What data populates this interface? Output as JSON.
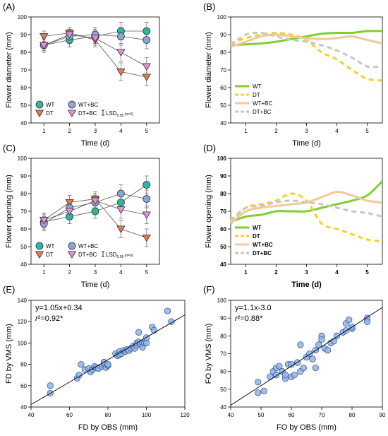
{
  "chart_data": [
    {
      "id": "A",
      "panel_label": "(A)",
      "type": "line",
      "xlabel": "Time (d)",
      "ylabel": "Flower diameter (mm)",
      "xlim": [
        0.5,
        5.5
      ],
      "ylim": [
        40,
        100
      ],
      "xticks": [
        1,
        2,
        3,
        4,
        5
      ],
      "yticks": [
        40,
        50,
        60,
        70,
        80,
        90,
        100
      ],
      "x": [
        1,
        2,
        3,
        4,
        5
      ],
      "series": [
        {
          "name": "WT",
          "color": "#2bb7a0",
          "marker": "circle",
          "values": [
            84,
            87,
            89,
            92,
            92
          ],
          "errors": [
            4,
            4,
            4,
            5,
            5
          ]
        },
        {
          "name": "DT",
          "color": "#e07b52",
          "marker": "triangle-down",
          "values": [
            89,
            91,
            87,
            69,
            66
          ],
          "errors": [
            3,
            3,
            4,
            5,
            5
          ]
        },
        {
          "name": "WT+BC",
          "color": "#8fa4d6",
          "marker": "circle",
          "values": [
            84,
            89,
            90,
            89,
            87
          ],
          "errors": [
            4,
            4,
            4,
            5,
            5
          ]
        },
        {
          "name": "DT+BC",
          "color": "#e48fd6",
          "marker": "triangle-down",
          "values": [
            84,
            90,
            88,
            80,
            72
          ],
          "errors": [
            3,
            3,
            4,
            5,
            5
          ]
        }
      ],
      "lsd": {
        "label": "LSD",
        "sub": "0.05",
        "n": "(n=3)"
      },
      "legend_position": "bottom-left"
    },
    {
      "id": "B",
      "panel_label": "(B)",
      "type": "line",
      "xlabel": "Time (d)",
      "ylabel": "Flower diameter (mm)",
      "xlim": [
        0.5,
        5.5
      ],
      "ylim": [
        40,
        100
      ],
      "xticks": [
        1,
        2,
        3,
        4,
        5
      ],
      "yticks": [
        40,
        50,
        60,
        70,
        80,
        90,
        100
      ],
      "series": [
        {
          "name": "WT",
          "color": "#7ed02f",
          "dash": "solid",
          "x": [
            0.5,
            1,
            1.5,
            2,
            2.5,
            3,
            3.5,
            4,
            4.5,
            5,
            5.5
          ],
          "values": [
            84,
            84.5,
            85,
            86,
            87.5,
            89,
            90.5,
            91,
            91,
            92,
            92
          ]
        },
        {
          "name": "DT",
          "color": "#f2d22e",
          "dash": "dash",
          "x": [
            0.5,
            1,
            1.5,
            2,
            2.5,
            3,
            3.5,
            4,
            4.5,
            5,
            5.5
          ],
          "values": [
            85,
            88,
            90,
            91,
            90,
            87,
            80,
            76,
            70,
            65,
            64
          ]
        },
        {
          "name": "WT+BC",
          "color": "#f2c89c",
          "dash": "solid",
          "x": [
            0.5,
            1,
            1.5,
            2,
            2.5,
            3,
            3.5,
            4,
            4.5,
            5,
            5.5
          ],
          "values": [
            83,
            86,
            89,
            90,
            89,
            88,
            87.5,
            88,
            89,
            87,
            85
          ]
        },
        {
          "name": "DT+BC",
          "color": "#c6c6c6",
          "dash": "dash",
          "x": [
            0.5,
            1,
            1.5,
            2,
            2.5,
            3,
            3.5,
            4,
            4.5,
            5,
            5.5
          ],
          "values": [
            84,
            90,
            91,
            89,
            87,
            86,
            84,
            81,
            77,
            72,
            72
          ]
        }
      ],
      "legend_position": "bottom-left"
    },
    {
      "id": "C",
      "panel_label": "(C)",
      "type": "line",
      "xlabel": "Time (d)",
      "ylabel": "Flower opening (mm)",
      "xlim": [
        0.5,
        5.5
      ],
      "ylim": [
        40,
        100
      ],
      "xticks": [
        1,
        2,
        3,
        4,
        5
      ],
      "yticks": [
        40,
        50,
        60,
        70,
        80,
        90,
        100
      ],
      "x": [
        1,
        2,
        3,
        4,
        5
      ],
      "series": [
        {
          "name": "WT",
          "color": "#2bb7a0",
          "marker": "circle",
          "values": [
            64,
            67,
            70,
            75,
            85
          ],
          "errors": [
            4,
            4,
            4,
            5,
            5
          ]
        },
        {
          "name": "DT",
          "color": "#e07b52",
          "marker": "triangle-down",
          "values": [
            65,
            75,
            77,
            60,
            55
          ],
          "errors": [
            4,
            4,
            4,
            5,
            5
          ]
        },
        {
          "name": "WT+BC",
          "color": "#8fa4d6",
          "marker": "circle",
          "values": [
            63,
            72,
            75,
            80,
            77
          ],
          "errors": [
            4,
            4,
            4,
            5,
            5
          ]
        },
        {
          "name": "DT+BC",
          "color": "#e48fd6",
          "marker": "triangle-down",
          "values": [
            65,
            70,
            76,
            71,
            68
          ],
          "errors": [
            4,
            4,
            4,
            5,
            5
          ]
        }
      ],
      "lsd": {
        "label": "LSD",
        "sub": "0.05",
        "n": "(n=3)"
      },
      "legend_position": "bottom-left"
    },
    {
      "id": "D",
      "panel_label": "(D)",
      "type": "line",
      "xlabel": "Time (d)",
      "ylabel": "Flower opening (mm)",
      "bold_axis_text": true,
      "xlim": [
        0.5,
        5.5
      ],
      "ylim": [
        40,
        100
      ],
      "xticks": [
        1,
        2,
        3,
        4,
        5
      ],
      "yticks": [
        40,
        50,
        60,
        70,
        80,
        90,
        100
      ],
      "series": [
        {
          "name": "WT",
          "color": "#7ed02f",
          "dash": "solid",
          "x": [
            0.5,
            1,
            1.5,
            2,
            2.5,
            3,
            3.5,
            4,
            4.5,
            5,
            5.5
          ],
          "values": [
            64,
            67,
            68,
            70,
            70,
            70,
            72,
            74,
            76,
            79,
            87
          ]
        },
        {
          "name": "DT",
          "color": "#f2d22e",
          "dash": "dash",
          "x": [
            0.5,
            1,
            1.5,
            2,
            2.5,
            3,
            3.5,
            4,
            4.5,
            5,
            5.5
          ],
          "values": [
            64,
            72,
            74,
            76,
            80,
            76,
            63,
            60,
            57,
            54,
            53
          ]
        },
        {
          "name": "WT+BC",
          "color": "#f2c89c",
          "dash": "solid",
          "x": [
            0.5,
            1,
            1.5,
            2,
            2.5,
            3,
            3.5,
            4,
            4.5,
            5,
            5.5
          ],
          "values": [
            63,
            70,
            72,
            73,
            74,
            75,
            78,
            81,
            79,
            76,
            75
          ]
        },
        {
          "name": "DT+BC",
          "color": "#c6c6c6",
          "dash": "dash",
          "x": [
            0.5,
            1,
            1.5,
            2,
            2.5,
            3,
            3.5,
            4,
            4.5,
            5,
            5.5
          ],
          "values": [
            65,
            72,
            73,
            75,
            76,
            75,
            74,
            72,
            70,
            69,
            67
          ]
        }
      ],
      "legend_position": "bottom-left"
    },
    {
      "id": "E",
      "panel_label": "(E)",
      "type": "scatter",
      "xlabel": "FD by OBS (mm)",
      "ylabel": "FD by VMS (mm)",
      "xlim": [
        40,
        120
      ],
      "ylim": [
        40,
        140
      ],
      "xticks": [
        40,
        60,
        80,
        100,
        120
      ],
      "yticks": [
        40,
        60,
        80,
        100,
        120,
        140
      ],
      "equation": "y=1.05x+0.34",
      "r2": "r²=0.92*",
      "fit": {
        "slope": 1.05,
        "intercept": 0.34
      },
      "marker_color": "#8fb3e6",
      "points": [
        [
          50,
          60
        ],
        [
          50,
          53
        ],
        [
          64,
          67
        ],
        [
          65,
          70
        ],
        [
          66,
          80
        ],
        [
          68,
          75
        ],
        [
          70,
          76
        ],
        [
          71,
          73
        ],
        [
          72,
          75
        ],
        [
          73,
          78
        ],
        [
          74,
          77
        ],
        [
          75,
          76
        ],
        [
          77,
          78
        ],
        [
          78,
          80
        ],
        [
          78,
          82
        ],
        [
          79,
          77
        ],
        [
          80,
          79
        ],
        [
          80,
          80
        ],
        [
          84,
          90
        ],
        [
          85,
          88
        ],
        [
          86,
          92
        ],
        [
          86,
          89
        ],
        [
          87,
          90
        ],
        [
          88,
          93
        ],
        [
          89,
          92
        ],
        [
          90,
          94
        ],
        [
          91,
          93
        ],
        [
          92,
          95
        ],
        [
          93,
          97
        ],
        [
          94,
          95
        ],
        [
          95,
          98
        ],
        [
          95,
          100
        ],
        [
          96,
          101
        ],
        [
          96,
          110
        ],
        [
          97,
          99
        ],
        [
          98,
          100
        ],
        [
          98,
          96
        ],
        [
          99,
          100
        ],
        [
          100,
          105
        ],
        [
          100,
          100
        ],
        [
          103,
          115
        ],
        [
          104,
          112
        ],
        [
          111,
          130
        ],
        [
          113,
          120
        ]
      ]
    },
    {
      "id": "F",
      "panel_label": "(F)",
      "type": "scatter",
      "xlabel": "FO by OBS (mm)",
      "ylabel": "FO by VMS (mm)",
      "xlim": [
        40,
        90
      ],
      "ylim": [
        40,
        100
      ],
      "xticks": [
        40,
        50,
        60,
        70,
        80,
        90
      ],
      "yticks": [
        40,
        50,
        60,
        70,
        80,
        90,
        100
      ],
      "equation": "y=1.1x-3.0",
      "r2": "r²=0.88*",
      "fit": {
        "slope": 1.1,
        "intercept": -3.0
      },
      "marker_color": "#8fb3e6",
      "points": [
        [
          49,
          54
        ],
        [
          49,
          48
        ],
        [
          51,
          49
        ],
        [
          53,
          57
        ],
        [
          54,
          60
        ],
        [
          55,
          58
        ],
        [
          55,
          62
        ],
        [
          56,
          63
        ],
        [
          57,
          60
        ],
        [
          58,
          56
        ],
        [
          58,
          58
        ],
        [
          59,
          64
        ],
        [
          60,
          64
        ],
        [
          60,
          57
        ],
        [
          61,
          58
        ],
        [
          62,
          65
        ],
        [
          63,
          60
        ],
        [
          63,
          75
        ],
        [
          64,
          62
        ],
        [
          65,
          68
        ],
        [
          66,
          70
        ],
        [
          67,
          67
        ],
        [
          68,
          72
        ],
        [
          68,
          62
        ],
        [
          69,
          75
        ],
        [
          70,
          80
        ],
        [
          70,
          78
        ],
        [
          71,
          73
        ],
        [
          72,
          72
        ],
        [
          73,
          76
        ],
        [
          74,
          77
        ],
        [
          75,
          80
        ],
        [
          77,
          82
        ],
        [
          78,
          87
        ],
        [
          78,
          83
        ],
        [
          79,
          89
        ],
        [
          80,
          84
        ],
        [
          80,
          85
        ],
        [
          85,
          90
        ],
        [
          85,
          88
        ]
      ]
    }
  ]
}
